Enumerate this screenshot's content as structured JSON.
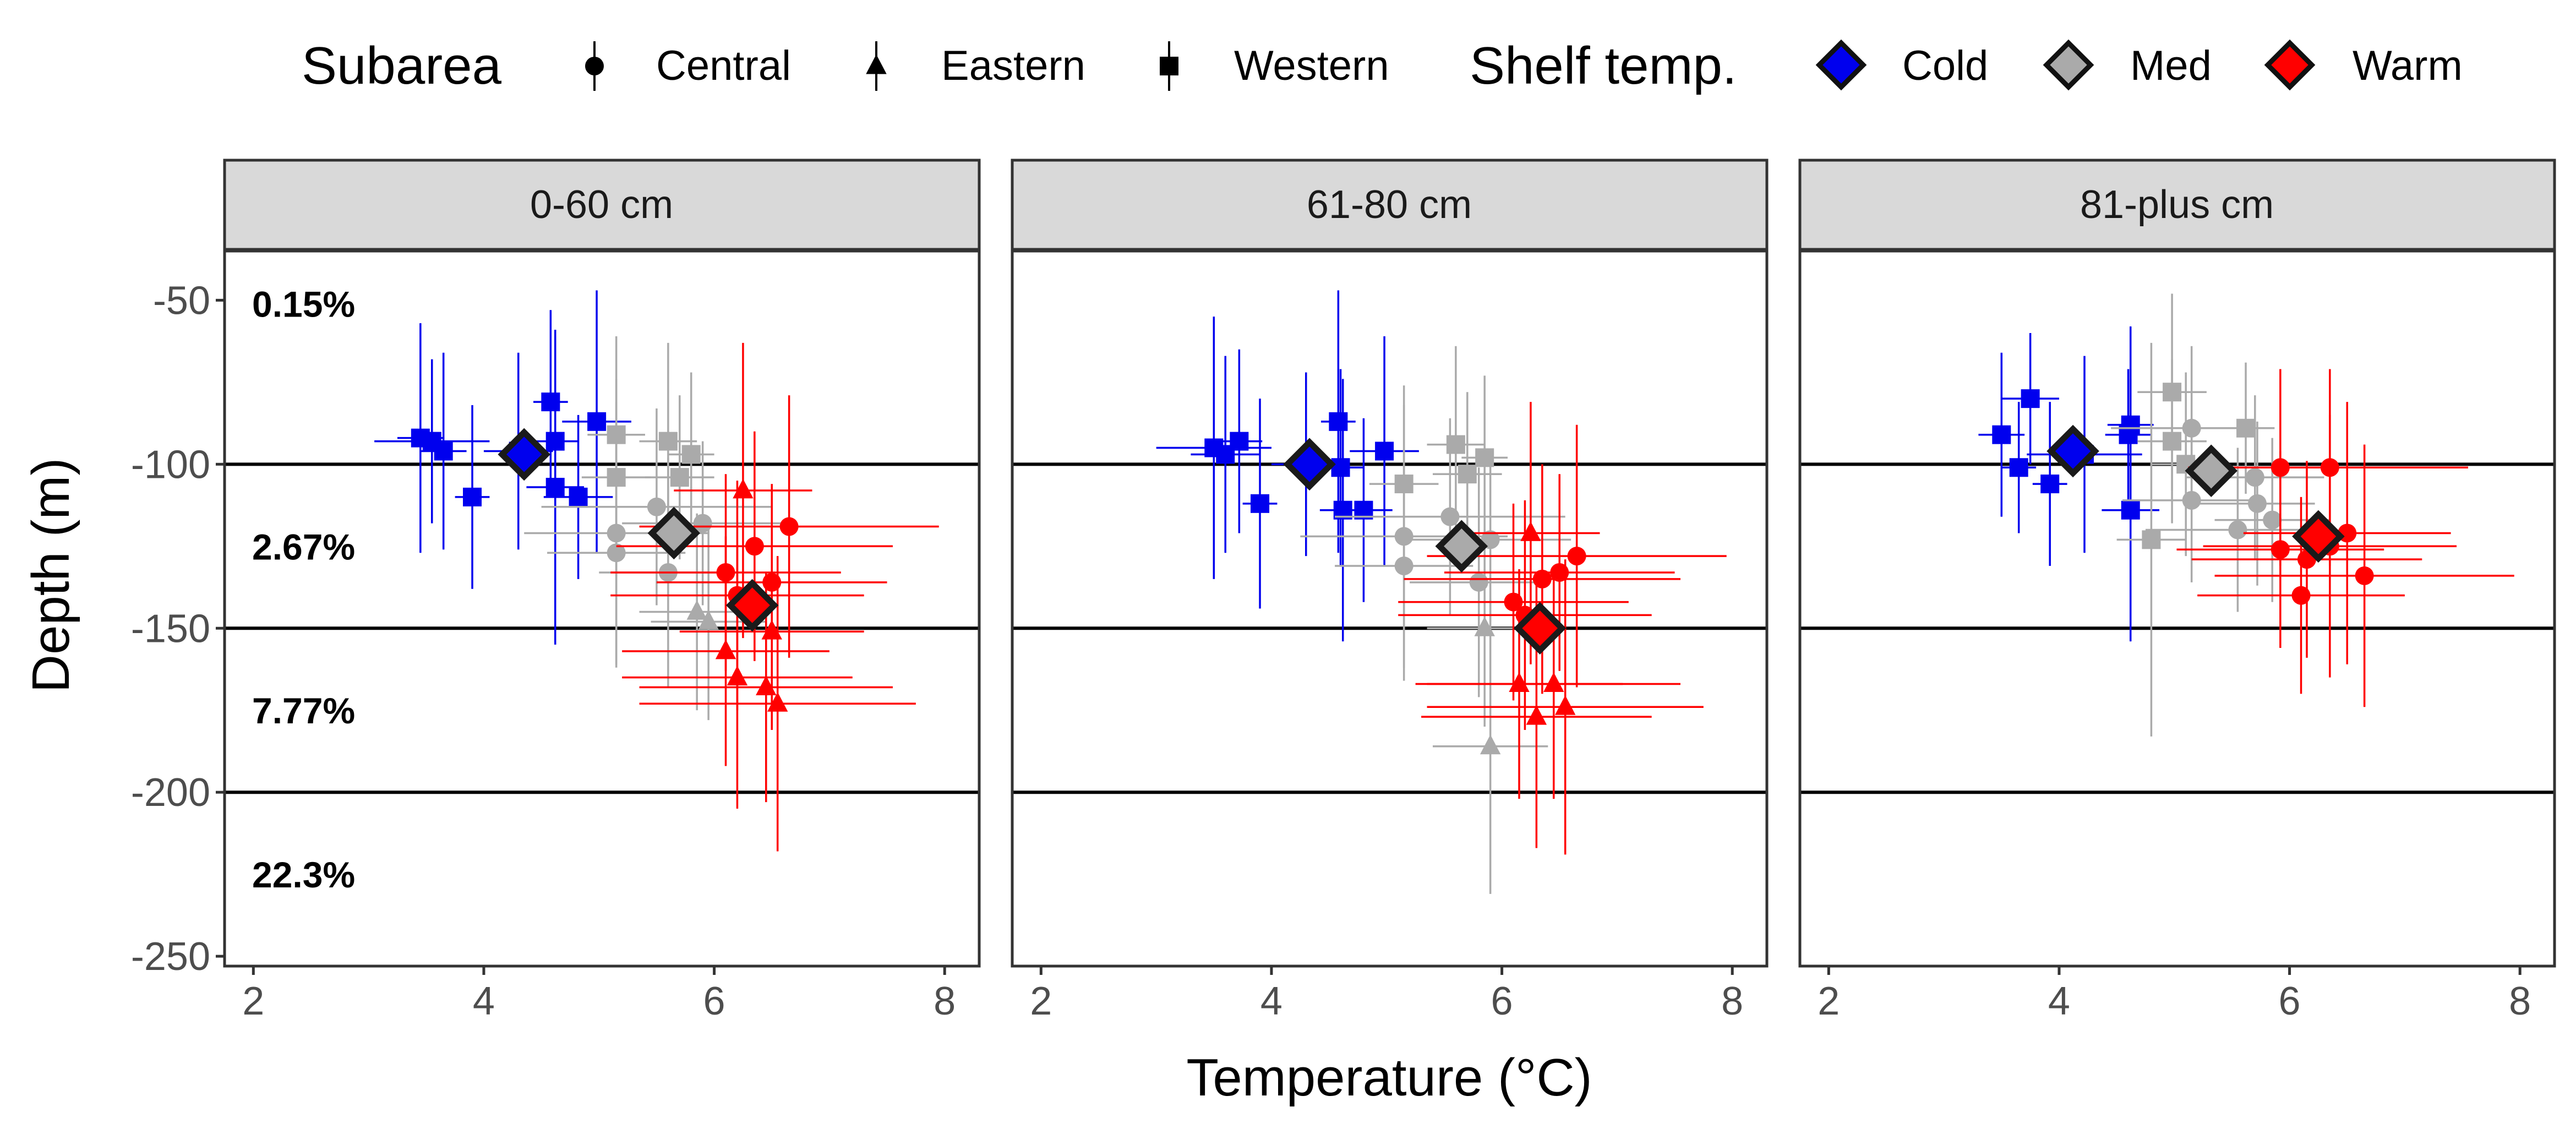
{
  "chart_data": {
    "type": "scatter",
    "xlabel": "Temperature (°C)",
    "ylabel": "Depth (m)",
    "xlim": [
      1.75,
      8.3
    ],
    "ylim": [
      -253,
      -35
    ],
    "xticks": [
      2,
      4,
      6,
      8
    ],
    "yticks": [
      -50,
      -100,
      -150,
      -200,
      -250
    ],
    "hlines": [
      -100,
      -150,
      -200
    ],
    "grid": false,
    "legend_position": "top",
    "legend": {
      "shape_title": "Subarea",
      "shapes": [
        {
          "label": "Central",
          "shape": "circle"
        },
        {
          "label": "Eastern",
          "shape": "triangle"
        },
        {
          "label": "Western",
          "shape": "square"
        }
      ],
      "fill_title": "Shelf temp.",
      "fills": [
        {
          "label": "Cold",
          "color": "#0000ee"
        },
        {
          "label": "Med",
          "color": "#aaaaaa"
        },
        {
          "label": "Warm",
          "color": "#ff0000"
        }
      ]
    },
    "colors": {
      "Cold": "#0000ee",
      "Med": "#aaaaaa",
      "Warm": "#ff0000",
      "mean_outline": "#1a1a1a"
    },
    "band_annotations": [
      {
        "y": -51,
        "text": "0.15%"
      },
      {
        "y": -125,
        "text": "2.67%"
      },
      {
        "y": -175,
        "text": "7.77%"
      },
      {
        "y": -225,
        "text": "22.3%"
      }
    ],
    "panels": [
      {
        "strip": "0-60 cm",
        "means": [
          {
            "group": "Cold",
            "x": 4.35,
            "y": -97
          },
          {
            "group": "Med",
            "x": 5.65,
            "y": -121
          },
          {
            "group": "Warm",
            "x": 6.33,
            "y": -143
          }
        ],
        "points": [
          {
            "x": 3.45,
            "y": -92,
            "xe": 0.2,
            "ye": 35,
            "shape": "square",
            "group": "Cold"
          },
          {
            "x": 3.55,
            "y": -93,
            "xe": 0.5,
            "ye": 25,
            "shape": "square",
            "group": "Cold"
          },
          {
            "x": 3.65,
            "y": -96,
            "xe": 0.2,
            "ye": 30,
            "shape": "square",
            "group": "Cold"
          },
          {
            "x": 3.9,
            "y": -110,
            "xe": 0.15,
            "ye": 28,
            "shape": "square",
            "group": "Cold"
          },
          {
            "x": 4.3,
            "y": -96,
            "xe": 0.3,
            "ye": 30,
            "shape": "square",
            "group": "Cold"
          },
          {
            "x": 4.58,
            "y": -81,
            "xe": 0.15,
            "ye": 28,
            "shape": "square",
            "group": "Cold"
          },
          {
            "x": 4.62,
            "y": -93,
            "xe": 0.2,
            "ye": 32,
            "shape": "square",
            "group": "Cold"
          },
          {
            "x": 4.62,
            "y": -107,
            "xe": 0.25,
            "ye": 48,
            "shape": "square",
            "group": "Cold"
          },
          {
            "x": 4.82,
            "y": -110,
            "xe": 0.3,
            "ye": 25,
            "shape": "square",
            "group": "Cold"
          },
          {
            "x": 4.98,
            "y": -87,
            "xe": 0.3,
            "ye": 40,
            "shape": "square",
            "group": "Cold"
          },
          {
            "x": 5.15,
            "y": -91,
            "xe": 0.25,
            "ye": 30,
            "shape": "square",
            "group": "Med"
          },
          {
            "x": 5.15,
            "y": -104,
            "xe": 0.3,
            "ye": 30,
            "shape": "square",
            "group": "Med"
          },
          {
            "x": 5.6,
            "y": -93,
            "xe": 0.25,
            "ye": 30,
            "shape": "square",
            "group": "Med"
          },
          {
            "x": 5.7,
            "y": -104,
            "xe": 0.3,
            "ye": 25,
            "shape": "square",
            "group": "Med"
          },
          {
            "x": 5.8,
            "y": -97,
            "xe": 0.2,
            "ye": 25,
            "shape": "square",
            "group": "Med"
          },
          {
            "x": 5.15,
            "y": -121,
            "xe": 0.8,
            "ye": 40,
            "shape": "circle",
            "group": "Med"
          },
          {
            "x": 5.15,
            "y": -127,
            "xe": 0.6,
            "ye": 35,
            "shape": "circle",
            "group": "Med"
          },
          {
            "x": 5.5,
            "y": -113,
            "xe": 1.0,
            "ye": 30,
            "shape": "circle",
            "group": "Med"
          },
          {
            "x": 5.9,
            "y": -118,
            "xe": 0.7,
            "ye": 25,
            "shape": "circle",
            "group": "Med"
          },
          {
            "x": 5.6,
            "y": -133,
            "xe": 0.6,
            "ye": 35,
            "shape": "circle",
            "group": "Med"
          },
          {
            "x": 5.85,
            "y": -145,
            "xe": 0.5,
            "ye": 30,
            "shape": "triangle",
            "group": "Med"
          },
          {
            "x": 5.95,
            "y": -148,
            "xe": 0.5,
            "ye": 30,
            "shape": "triangle",
            "group": "Med"
          },
          {
            "x": 6.1,
            "y": -133,
            "xe": 1.0,
            "ye": 30,
            "shape": "circle",
            "group": "Warm"
          },
          {
            "x": 6.2,
            "y": -140,
            "xe": 1.1,
            "ye": 35,
            "shape": "circle",
            "group": "Warm"
          },
          {
            "x": 6.35,
            "y": -125,
            "xe": 1.2,
            "ye": 35,
            "shape": "circle",
            "group": "Warm"
          },
          {
            "x": 6.5,
            "y": -136,
            "xe": 1.0,
            "ye": 30,
            "shape": "circle",
            "group": "Warm"
          },
          {
            "x": 6.65,
            "y": -119,
            "xe": 1.3,
            "ye": 40,
            "shape": "circle",
            "group": "Warm"
          },
          {
            "x": 6.25,
            "y": -108,
            "xe": 0.6,
            "ye": 45,
            "shape": "triangle",
            "group": "Warm"
          },
          {
            "x": 6.1,
            "y": -157,
            "xe": 0.9,
            "ye": 35,
            "shape": "triangle",
            "group": "Warm"
          },
          {
            "x": 6.2,
            "y": -165,
            "xe": 1.0,
            "ye": 40,
            "shape": "triangle",
            "group": "Warm"
          },
          {
            "x": 6.45,
            "y": -168,
            "xe": 1.1,
            "ye": 35,
            "shape": "triangle",
            "group": "Warm"
          },
          {
            "x": 6.55,
            "y": -173,
            "xe": 1.2,
            "ye": 45,
            "shape": "triangle",
            "group": "Warm"
          },
          {
            "x": 6.5,
            "y": -151,
            "xe": 0.8,
            "ye": 30,
            "shape": "triangle",
            "group": "Warm"
          }
        ]
      },
      {
        "strip": "61-80 cm",
        "means": [
          {
            "group": "Cold",
            "x": 4.33,
            "y": -100
          },
          {
            "group": "Med",
            "x": 5.65,
            "y": -125
          },
          {
            "group": "Warm",
            "x": 6.33,
            "y": -150
          }
        ],
        "points": [
          {
            "x": 3.5,
            "y": -95,
            "xe": 0.5,
            "ye": 40,
            "shape": "square",
            "group": "Cold"
          },
          {
            "x": 3.6,
            "y": -97,
            "xe": 0.3,
            "ye": 30,
            "shape": "square",
            "group": "Cold"
          },
          {
            "x": 3.72,
            "y": -93,
            "xe": 0.2,
            "ye": 28,
            "shape": "square",
            "group": "Cold"
          },
          {
            "x": 3.9,
            "y": -112,
            "xe": 0.15,
            "ye": 32,
            "shape": "square",
            "group": "Cold"
          },
          {
            "x": 4.3,
            "y": -100,
            "xe": 0.3,
            "ye": 28,
            "shape": "square",
            "group": "Cold"
          },
          {
            "x": 4.58,
            "y": -87,
            "xe": 0.15,
            "ye": 40,
            "shape": "square",
            "group": "Cold"
          },
          {
            "x": 4.6,
            "y": -101,
            "xe": 0.2,
            "ye": 30,
            "shape": "square",
            "group": "Cold"
          },
          {
            "x": 4.62,
            "y": -114,
            "xe": 0.2,
            "ye": 40,
            "shape": "square",
            "group": "Cold"
          },
          {
            "x": 4.8,
            "y": -114,
            "xe": 0.25,
            "ye": 28,
            "shape": "square",
            "group": "Cold"
          },
          {
            "x": 4.98,
            "y": -96,
            "xe": 0.3,
            "ye": 35,
            "shape": "square",
            "group": "Cold"
          },
          {
            "x": 5.15,
            "y": -106,
            "xe": 0.3,
            "ye": 30,
            "shape": "square",
            "group": "Med"
          },
          {
            "x": 5.6,
            "y": -94,
            "xe": 0.25,
            "ye": 30,
            "shape": "square",
            "group": "Med"
          },
          {
            "x": 5.7,
            "y": -103,
            "xe": 0.3,
            "ye": 25,
            "shape": "square",
            "group": "Med"
          },
          {
            "x": 5.85,
            "y": -98,
            "xe": 0.2,
            "ye": 25,
            "shape": "square",
            "group": "Med"
          },
          {
            "x": 5.15,
            "y": -122,
            "xe": 0.9,
            "ye": 40,
            "shape": "circle",
            "group": "Med"
          },
          {
            "x": 5.15,
            "y": -131,
            "xe": 0.6,
            "ye": 35,
            "shape": "circle",
            "group": "Med"
          },
          {
            "x": 5.55,
            "y": -116,
            "xe": 1.0,
            "ye": 30,
            "shape": "circle",
            "group": "Med"
          },
          {
            "x": 5.9,
            "y": -123,
            "xe": 0.7,
            "ye": 25,
            "shape": "circle",
            "group": "Med"
          },
          {
            "x": 5.8,
            "y": -136,
            "xe": 0.6,
            "ye": 35,
            "shape": "circle",
            "group": "Med"
          },
          {
            "x": 5.85,
            "y": -150,
            "xe": 0.5,
            "ye": 30,
            "shape": "triangle",
            "group": "Med"
          },
          {
            "x": 5.9,
            "y": -186,
            "xe": 0.5,
            "ye": 45,
            "shape": "triangle",
            "group": "Med"
          },
          {
            "x": 6.1,
            "y": -142,
            "xe": 1.0,
            "ye": 30,
            "shape": "circle",
            "group": "Warm"
          },
          {
            "x": 6.2,
            "y": -146,
            "xe": 1.1,
            "ye": 35,
            "shape": "circle",
            "group": "Warm"
          },
          {
            "x": 6.35,
            "y": -135,
            "xe": 1.2,
            "ye": 35,
            "shape": "circle",
            "group": "Warm"
          },
          {
            "x": 6.5,
            "y": -133,
            "xe": 1.0,
            "ye": 30,
            "shape": "circle",
            "group": "Warm"
          },
          {
            "x": 6.65,
            "y": -128,
            "xe": 1.3,
            "ye": 40,
            "shape": "circle",
            "group": "Warm"
          },
          {
            "x": 6.25,
            "y": -121,
            "xe": 0.6,
            "ye": 40,
            "shape": "triangle",
            "group": "Warm"
          },
          {
            "x": 6.15,
            "y": -167,
            "xe": 0.9,
            "ye": 35,
            "shape": "triangle",
            "group": "Warm"
          },
          {
            "x": 6.3,
            "y": -177,
            "xe": 1.0,
            "ye": 40,
            "shape": "triangle",
            "group": "Warm"
          },
          {
            "x": 6.45,
            "y": -167,
            "xe": 1.1,
            "ye": 35,
            "shape": "triangle",
            "group": "Warm"
          },
          {
            "x": 6.55,
            "y": -174,
            "xe": 1.2,
            "ye": 45,
            "shape": "triangle",
            "group": "Warm"
          }
        ]
      },
      {
        "strip": "81-plus cm",
        "means": [
          {
            "group": "Cold",
            "x": 4.12,
            "y": -96
          },
          {
            "group": "Med",
            "x": 5.32,
            "y": -102
          },
          {
            "group": "Warm",
            "x": 6.25,
            "y": -122
          }
        ],
        "points": [
          {
            "x": 3.5,
            "y": -91,
            "xe": 0.2,
            "ye": 25,
            "shape": "square",
            "group": "Cold"
          },
          {
            "x": 3.65,
            "y": -101,
            "xe": 0.15,
            "ye": 20,
            "shape": "square",
            "group": "Cold"
          },
          {
            "x": 3.75,
            "y": -80,
            "xe": 0.25,
            "ye": 20,
            "shape": "square",
            "group": "Cold"
          },
          {
            "x": 3.92,
            "y": -106,
            "xe": 0.15,
            "ye": 25,
            "shape": "square",
            "group": "Cold"
          },
          {
            "x": 4.22,
            "y": -97,
            "xe": 0.5,
            "ye": 30,
            "shape": "square",
            "group": "Cold"
          },
          {
            "x": 4.6,
            "y": -91,
            "xe": 0.2,
            "ye": 20,
            "shape": "square",
            "group": "Cold"
          },
          {
            "x": 4.62,
            "y": -88,
            "xe": 0.2,
            "ye": 30,
            "shape": "square",
            "group": "Cold"
          },
          {
            "x": 4.62,
            "y": -114,
            "xe": 0.25,
            "ye": 40,
            "shape": "square",
            "group": "Cold"
          },
          {
            "x": 4.98,
            "y": -78,
            "xe": 0.3,
            "ye": 30,
            "shape": "square",
            "group": "Med"
          },
          {
            "x": 4.98,
            "y": -93,
            "xe": 0.3,
            "ye": 25,
            "shape": "square",
            "group": "Med"
          },
          {
            "x": 5.1,
            "y": -100,
            "xe": 0.3,
            "ye": 28,
            "shape": "square",
            "group": "Med"
          },
          {
            "x": 5.62,
            "y": -89,
            "xe": 0.25,
            "ye": 20,
            "shape": "square",
            "group": "Med"
          },
          {
            "x": 4.8,
            "y": -123,
            "xe": 0.3,
            "ye": 60,
            "shape": "square",
            "group": "Med"
          },
          {
            "x": 5.15,
            "y": -89,
            "xe": 0.7,
            "ye": 25,
            "shape": "circle",
            "group": "Med"
          },
          {
            "x": 5.15,
            "y": -111,
            "xe": 0.6,
            "ye": 25,
            "shape": "circle",
            "group": "Med"
          },
          {
            "x": 5.55,
            "y": -120,
            "xe": 0.8,
            "ye": 25,
            "shape": "circle",
            "group": "Med"
          },
          {
            "x": 5.7,
            "y": -104,
            "xe": 0.6,
            "ye": 25,
            "shape": "circle",
            "group": "Med"
          },
          {
            "x": 5.72,
            "y": -112,
            "xe": 0.5,
            "ye": 25,
            "shape": "circle",
            "group": "Med"
          },
          {
            "x": 5.85,
            "y": -117,
            "xe": 0.5,
            "ye": 25,
            "shape": "circle",
            "group": "Med"
          },
          {
            "x": 5.92,
            "y": -101,
            "xe": 0.8,
            "ye": 30,
            "shape": "circle",
            "group": "Warm"
          },
          {
            "x": 6.35,
            "y": -101,
            "xe": 1.2,
            "ye": 30,
            "shape": "circle",
            "group": "Warm"
          },
          {
            "x": 5.92,
            "y": -126,
            "xe": 0.9,
            "ye": 30,
            "shape": "circle",
            "group": "Warm"
          },
          {
            "x": 6.1,
            "y": -140,
            "xe": 0.9,
            "ye": 30,
            "shape": "circle",
            "group": "Warm"
          },
          {
            "x": 6.15,
            "y": -129,
            "xe": 1.0,
            "ye": 30,
            "shape": "circle",
            "group": "Warm"
          },
          {
            "x": 6.35,
            "y": -125,
            "xe": 1.1,
            "ye": 40,
            "shape": "circle",
            "group": "Warm"
          },
          {
            "x": 6.5,
            "y": -121,
            "xe": 0.9,
            "ye": 40,
            "shape": "circle",
            "group": "Warm"
          },
          {
            "x": 6.65,
            "y": -134,
            "xe": 1.3,
            "ye": 40,
            "shape": "circle",
            "group": "Warm"
          }
        ]
      }
    ]
  }
}
